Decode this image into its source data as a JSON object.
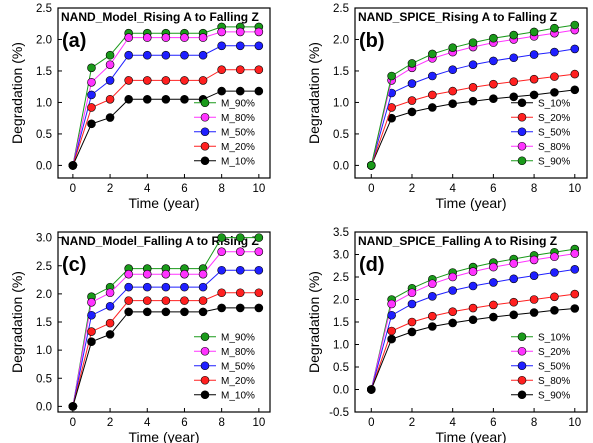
{
  "chart_data": [
    {
      "type": "line",
      "panel_label": "(a)",
      "title": "NAND_Model_Rising A to Falling Z",
      "xlabel": "Time (year)",
      "ylabel": "Degradation (%)",
      "xlim": [
        -0.8,
        10.6
      ],
      "ylim": [
        -0.2,
        2.5
      ],
      "xticks": [
        0,
        2,
        4,
        6,
        8,
        10
      ],
      "yticks": [
        0.0,
        0.5,
        1.0,
        1.5,
        2.0,
        2.5
      ],
      "ytick_decimals": 1,
      "legend_position": "bottom-right",
      "x": [
        0,
        1,
        2,
        3,
        4,
        5,
        6,
        7,
        8,
        9,
        10
      ],
      "series": [
        {
          "name": "M_90%",
          "color": "#1a9a1a",
          "values": [
            0,
            1.55,
            1.75,
            2.1,
            2.1,
            2.1,
            2.1,
            2.1,
            2.2,
            2.2,
            2.2
          ]
        },
        {
          "name": "M_80%",
          "color": "#ff33ff",
          "values": [
            0,
            1.32,
            1.6,
            2.03,
            2.03,
            2.03,
            2.03,
            2.03,
            2.12,
            2.12,
            2.12
          ]
        },
        {
          "name": "M_50%",
          "color": "#1f1fff",
          "values": [
            0,
            1.12,
            1.35,
            1.75,
            1.75,
            1.75,
            1.75,
            1.75,
            1.9,
            1.9,
            1.9
          ]
        },
        {
          "name": "M_20%",
          "color": "#ff2020",
          "values": [
            0,
            0.92,
            1.05,
            1.35,
            1.35,
            1.35,
            1.35,
            1.35,
            1.52,
            1.52,
            1.52
          ]
        },
        {
          "name": "M_10%",
          "color": "#000000",
          "values": [
            0,
            0.66,
            0.76,
            1.05,
            1.05,
            1.05,
            1.05,
            1.05,
            1.18,
            1.18,
            1.18
          ]
        }
      ]
    },
    {
      "type": "line",
      "panel_label": "(b)",
      "title": "NAND_SPICE_Rising A to Falling Z",
      "xlabel": "Time (year)",
      "ylabel": "Degradation (%)",
      "xlim": [
        -0.8,
        10.6
      ],
      "ylim": [
        -0.2,
        2.5
      ],
      "xticks": [
        0,
        2,
        4,
        6,
        8,
        10
      ],
      "yticks": [
        0.0,
        0.5,
        1.0,
        1.5,
        2.0,
        2.5
      ],
      "ytick_decimals": 1,
      "legend_position": "bottom-right",
      "x": [
        0,
        1,
        2,
        3,
        4,
        5,
        6,
        7,
        8,
        9,
        10
      ],
      "series": [
        {
          "name": "S_10%",
          "color": "#000000",
          "values": [
            0,
            0.75,
            0.85,
            0.92,
            0.98,
            1.02,
            1.06,
            1.09,
            1.12,
            1.16,
            1.2
          ]
        },
        {
          "name": "S_20%",
          "color": "#ff2020",
          "values": [
            0,
            0.92,
            1.03,
            1.12,
            1.18,
            1.24,
            1.29,
            1.33,
            1.37,
            1.41,
            1.45
          ]
        },
        {
          "name": "S_50%",
          "color": "#1f1fff",
          "values": [
            0,
            1.15,
            1.3,
            1.42,
            1.52,
            1.6,
            1.66,
            1.71,
            1.76,
            1.8,
            1.85
          ]
        },
        {
          "name": "S_80%",
          "color": "#ff33ff",
          "values": [
            0,
            1.35,
            1.55,
            1.7,
            1.8,
            1.88,
            1.95,
            2.0,
            2.05,
            2.1,
            2.15
          ]
        },
        {
          "name": "S_90%",
          "color": "#1a9a1a",
          "values": [
            0,
            1.42,
            1.62,
            1.77,
            1.87,
            1.95,
            2.02,
            2.07,
            2.12,
            2.18,
            2.23
          ]
        }
      ]
    },
    {
      "type": "line",
      "panel_label": "(c)",
      "title": "NAND_Model_Falling A to Rising Z",
      "xlabel": "Time (year)",
      "ylabel": "Degradation (%)",
      "xlim": [
        -0.8,
        10.6
      ],
      "ylim": [
        -0.1,
        3.1
      ],
      "xticks": [
        0,
        2,
        4,
        6,
        8,
        10
      ],
      "yticks": [
        0.0,
        0.5,
        1.0,
        1.5,
        2.0,
        2.5,
        3.0
      ],
      "ytick_decimals": 1,
      "legend_position": "bottom-right",
      "x": [
        0,
        1,
        2,
        3,
        4,
        5,
        6,
        7,
        8,
        9,
        10
      ],
      "series": [
        {
          "name": "M_90%",
          "color": "#1a9a1a",
          "values": [
            0,
            1.95,
            2.12,
            2.45,
            2.45,
            2.45,
            2.45,
            2.45,
            3.0,
            3.0,
            3.0
          ]
        },
        {
          "name": "M_80%",
          "color": "#ff33ff",
          "values": [
            0,
            1.85,
            2.02,
            2.35,
            2.35,
            2.35,
            2.35,
            2.35,
            2.75,
            2.75,
            2.75
          ]
        },
        {
          "name": "M_50%",
          "color": "#1f1fff",
          "values": [
            0,
            1.62,
            1.78,
            2.12,
            2.12,
            2.12,
            2.12,
            2.12,
            2.42,
            2.42,
            2.42
          ]
        },
        {
          "name": "M_20%",
          "color": "#ff2020",
          "values": [
            0,
            1.33,
            1.48,
            1.88,
            1.88,
            1.88,
            1.88,
            1.88,
            2.02,
            2.02,
            2.02
          ]
        },
        {
          "name": "M_10%",
          "color": "#000000",
          "values": [
            0,
            1.15,
            1.28,
            1.68,
            1.68,
            1.68,
            1.68,
            1.68,
            1.75,
            1.75,
            1.75
          ]
        }
      ]
    },
    {
      "type": "line",
      "panel_label": "(d)",
      "title": "NAND_SPICE_Falling A to Rising Z",
      "xlabel": "Time (year)",
      "ylabel": "Degradation (%)",
      "xlim": [
        -0.8,
        10.6
      ],
      "ylim": [
        -0.5,
        3.5
      ],
      "xticks": [
        0,
        2,
        4,
        6,
        8,
        10
      ],
      "yticks": [
        -0.5,
        0.0,
        0.5,
        1.0,
        1.5,
        2.0,
        2.5,
        3.0,
        3.5
      ],
      "ytick_decimals": 1,
      "legend_position": "bottom-right",
      "x": [
        0,
        1,
        2,
        3,
        4,
        5,
        6,
        7,
        8,
        9,
        10
      ],
      "series": [
        {
          "name": "S_10%",
          "color": "#1a9a1a",
          "values": [
            0,
            2.0,
            2.25,
            2.45,
            2.6,
            2.72,
            2.82,
            2.9,
            2.98,
            3.05,
            3.12
          ]
        },
        {
          "name": "S_20%",
          "color": "#ff33ff",
          "values": [
            0,
            1.9,
            2.15,
            2.35,
            2.5,
            2.62,
            2.72,
            2.8,
            2.88,
            2.95,
            3.02
          ]
        },
        {
          "name": "S_50%",
          "color": "#1f1fff",
          "values": [
            0,
            1.65,
            1.9,
            2.07,
            2.2,
            2.3,
            2.38,
            2.46,
            2.53,
            2.6,
            2.67
          ]
        },
        {
          "name": "S_80%",
          "color": "#ff2020",
          "values": [
            0,
            1.3,
            1.5,
            1.63,
            1.73,
            1.81,
            1.88,
            1.94,
            2.0,
            2.06,
            2.12
          ]
        },
        {
          "name": "S_90%",
          "color": "#000000",
          "values": [
            0,
            1.12,
            1.28,
            1.4,
            1.48,
            1.55,
            1.61,
            1.66,
            1.71,
            1.76,
            1.8
          ]
        }
      ]
    }
  ]
}
